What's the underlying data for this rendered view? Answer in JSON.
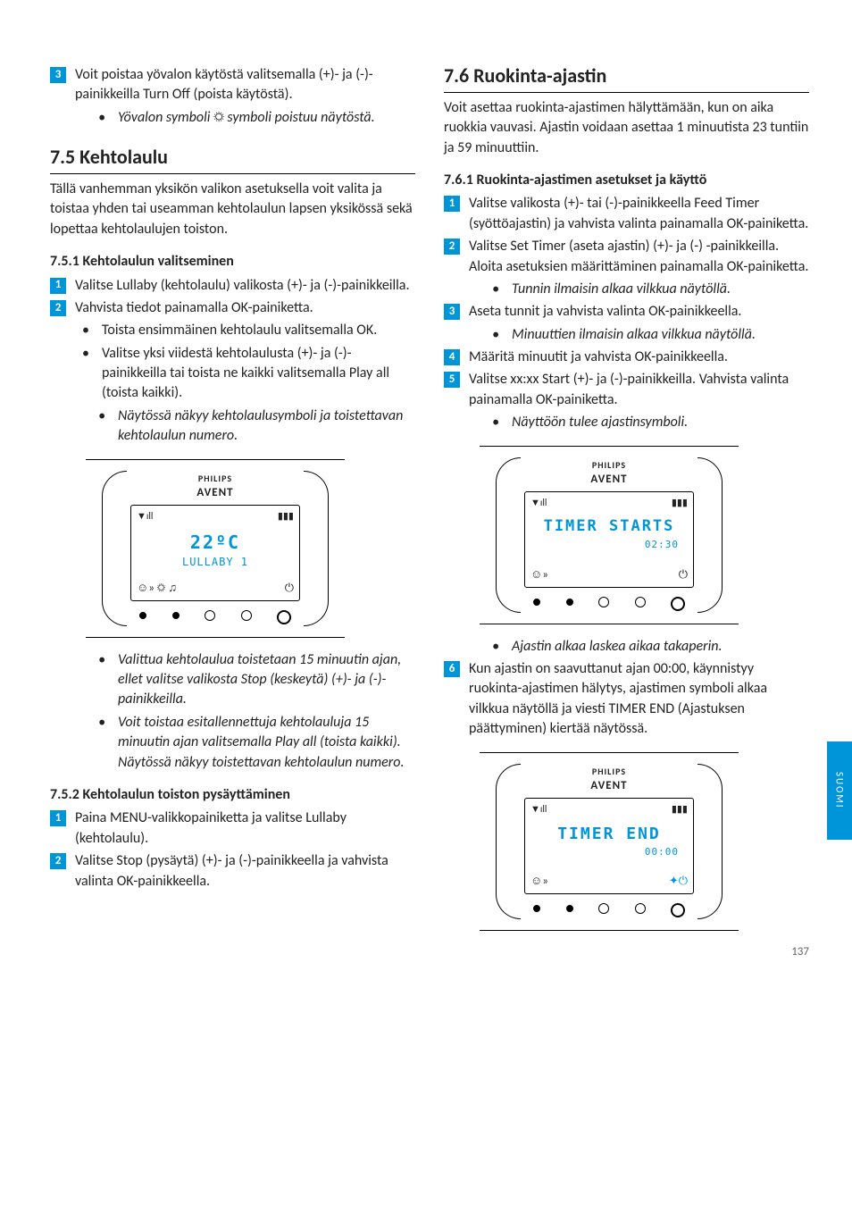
{
  "colors": {
    "accent": "#0095d9",
    "text": "#222222",
    "bg": "#ffffff"
  },
  "sideTab": "SUOMI",
  "pageNumber": "137",
  "left": {
    "step3": {
      "num": "3",
      "text": "Voit poistaa yövalon käytöstä valitsemalla (+)- ja (-)-painikkeilla Turn Off (poista käytöstä)."
    },
    "step3_note": "Yövalon symboli ☼ symboli poistuu näytöstä.",
    "h75": "7.5  Kehtolaulu",
    "h75_intro": "Tällä vanhemman yksikön valikon asetuksella voit valita ja toistaa yhden tai useamman kehtolaulun lapsen yksikössä sekä lopettaa kehtolaulujen toiston.",
    "h751": "7.5.1 Kehtolaulun valitseminen",
    "s751": [
      {
        "num": "1",
        "text": "Valitse Lullaby (kehtolaulu) valikosta (+)- ja (-)-painikkeilla."
      },
      {
        "num": "2",
        "text": "Vahvista tiedot painamalla OK-painiketta."
      }
    ],
    "s751_b1": [
      "Toista ensimmäinen kehtolaulu valitsemalla OK.",
      "Valitse yksi viidestä kehtolaulusta (+)- ja (-)-painikkeilla tai toista ne kaikki valitsemalla Play all (toista kaikki)."
    ],
    "s751_b2": "Näytössä näkyy kehtolaulusymboli ja toistettavan kehtolaulun numero.",
    "after_fig": [
      "Valittua kehtolaulua toistetaan 15 minuutin ajan, ellet valitse valikosta Stop (keskeytä) (+)- ja (-)-painikkeilla.",
      "Voit toistaa esitallennettuja kehtolauluja 15 minuutin ajan valitsemalla Play all (toista kaikki). Näytössä näkyy toistettavan kehtolaulun numero."
    ],
    "h752": "7.5.2 Kehtolaulun toiston pysäyttäminen",
    "s752": [
      {
        "num": "1",
        "text": "Paina MENU-valikkopainiketta ja valitse Lullaby (kehtolaulu)."
      },
      {
        "num": "2",
        "text": "Valitse Stop (pysäytä) (+)- ja (-)-painikkeella ja vahvista valinta OK-painikkeella."
      }
    ],
    "fig": {
      "brand": "PHILIPS",
      "subbrand": "AVENT",
      "lcd_main": "22ºC",
      "lcd_sub": "LULLABY 1",
      "icons_left": "☺» ☼ ♫",
      "signal": "▼ıll",
      "battery": "▮▮▮",
      "power": "⏻"
    }
  },
  "right": {
    "h76": "7.6  Ruokinta-ajastin",
    "h76_intro": "Voit asettaa ruokinta-ajastimen hälyttämään, kun on aika ruokkia vauvasi. Ajastin voidaan asettaa 1 minuutista 23 tuntiin ja 59 minuuttiin.",
    "h761": "7.6.1 Ruokinta-ajastimen asetukset ja käyttö",
    "s761": [
      {
        "num": "1",
        "text": "Valitse valikosta (+)- tai (-)-painikkeella Feed Timer (syöttöajastin) ja vahvista valinta painamalla OK-painiketta."
      },
      {
        "num": "2",
        "text": "Valitse Set Timer (aseta ajastin) (+)- ja (-) -painikkeilla. Aloita asetuksien määrittäminen painamalla OK-painiketta."
      }
    ],
    "n2": "Tunnin ilmaisin alkaa vilkkua näytöllä.",
    "s3": {
      "num": "3",
      "text": "Aseta tunnit ja vahvista valinta OK-painikkeella."
    },
    "n3": "Minuuttien ilmaisin alkaa vilkkua näytöllä.",
    "s4": {
      "num": "4",
      "text": "Määritä minuutit ja vahvista OK-painikkeella."
    },
    "s5": {
      "num": "5",
      "text": "Valitse xx:xx Start (+)- ja (-)-painikkeilla. Vahvista valinta painamalla OK-painiketta."
    },
    "n5": "Näyttöön tulee ajastinsymboli.",
    "fig1": {
      "brand": "PHILIPS",
      "subbrand": "AVENT",
      "lcd_main": "TIMER STARTS",
      "lcd_sub": "02:30",
      "icons_left": "☺»",
      "signal": "▼ıll",
      "battery": "▮▮▮",
      "power": "⏻"
    },
    "after_fig1": "Ajastin alkaa laskea aikaa takaperin.",
    "s6": {
      "num": "6",
      "text": "Kun ajastin on saavuttanut ajan 00:00, käynnistyy ruokinta-ajastimen hälytys, ajastimen symboli alkaa vilkkua näytöllä ja viesti TIMER END (Ajastuksen päättyminen) kiertää näytössä."
    },
    "fig2": {
      "brand": "PHILIPS",
      "subbrand": "AVENT",
      "lcd_main": "TIMER END",
      "lcd_sub": "00:00",
      "icons_left": "☺»",
      "signal": "▼ıll",
      "battery": "▮▮▮",
      "power": "✦⏻"
    }
  }
}
